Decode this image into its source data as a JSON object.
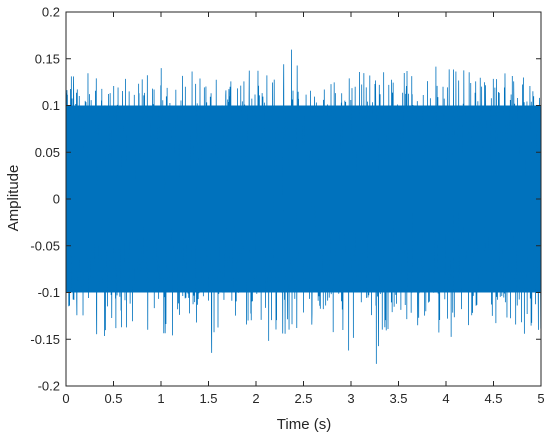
{
  "chart_data": {
    "type": "line",
    "title": "",
    "xlabel": "Time (s)",
    "ylabel": "Amplitude",
    "xlim": [
      0,
      5
    ],
    "ylim": [
      -0.2,
      0.2
    ],
    "x_ticks": [
      0,
      0.5,
      1,
      1.5,
      2,
      2.5,
      3,
      3.5,
      4,
      4.5,
      5
    ],
    "x_tick_labels": [
      "0",
      "0.5",
      "1",
      "1.5",
      "2",
      "2.5",
      "3",
      "3.5",
      "4",
      "4.5",
      "5"
    ],
    "y_ticks": [
      -0.2,
      -0.15,
      -0.1,
      -0.05,
      0,
      0.05,
      0.1,
      0.15,
      0.2
    ],
    "y_tick_labels": [
      "-0.2",
      "-0.15",
      "-0.1",
      "-0.05",
      "0",
      "0.05",
      "0.1",
      "0.15",
      "0.2"
    ],
    "grid": false,
    "legend": "none",
    "series": [
      {
        "color": "#0072BD",
        "description": "dense noise-like vibration signal, mostly within ±0.1 with spikes to about ±0.18",
        "x": [
          0,
          0.25,
          0.5,
          0.75,
          1,
          1.25,
          1.5,
          1.75,
          2,
          2.25,
          2.28,
          2.5,
          2.75,
          3,
          3.25,
          3.5,
          3.75,
          4,
          4.25,
          4.5,
          4.75,
          5
        ],
        "y_max": [
          0.13,
          0.135,
          0.14,
          0.13,
          0.14,
          0.135,
          0.15,
          0.13,
          0.145,
          0.135,
          0.175,
          0.14,
          0.13,
          0.14,
          0.13,
          0.145,
          0.13,
          0.155,
          0.135,
          0.145,
          0.13,
          0.13
        ],
        "y_min": [
          -0.14,
          -0.15,
          -0.145,
          -0.14,
          -0.16,
          -0.145,
          -0.17,
          -0.15,
          -0.16,
          -0.15,
          -0.145,
          -0.15,
          -0.14,
          -0.17,
          -0.185,
          -0.15,
          -0.14,
          -0.155,
          -0.15,
          -0.16,
          -0.15,
          -0.14
        ]
      }
    ]
  }
}
